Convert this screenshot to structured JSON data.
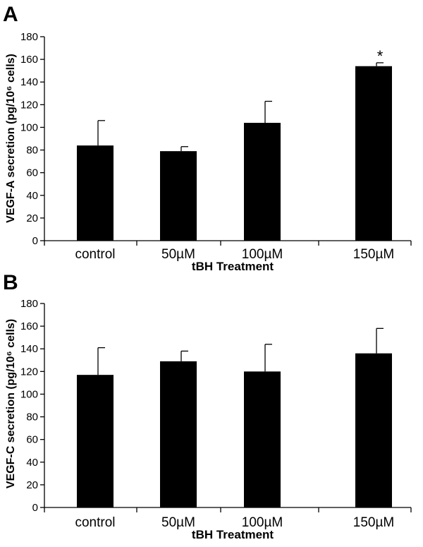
{
  "chart_data": [
    {
      "panel": "A",
      "type": "bar",
      "categories": [
        "control",
        "50µM",
        "100µM",
        "150µM"
      ],
      "values": [
        84,
        79,
        104,
        154
      ],
      "errors": [
        22,
        4,
        19,
        3
      ],
      "annotations": [
        "",
        "",
        "",
        "*"
      ],
      "xlabel": "tBH Treatment",
      "ylabel": "VEGF-A secretion (pg/10⁶ cells)",
      "ylim": [
        0,
        180
      ],
      "yticks": [
        0,
        20,
        40,
        60,
        80,
        100,
        120,
        140,
        160,
        180
      ],
      "bar_color": "#000000"
    },
    {
      "panel": "B",
      "type": "bar",
      "categories": [
        "control",
        "50µM",
        "100µM",
        "150µM"
      ],
      "values": [
        117,
        129,
        120,
        136
      ],
      "errors": [
        24,
        9,
        24,
        22
      ],
      "annotations": [
        "",
        "",
        "",
        ""
      ],
      "xlabel": "tBH Treatment",
      "ylabel": "VEGF-C secretion (pg/10⁶ cells)",
      "ylim": [
        0,
        180
      ],
      "yticks": [
        0,
        20,
        40,
        60,
        80,
        100,
        120,
        140,
        160,
        180
      ],
      "bar_color": "#000000"
    }
  ]
}
